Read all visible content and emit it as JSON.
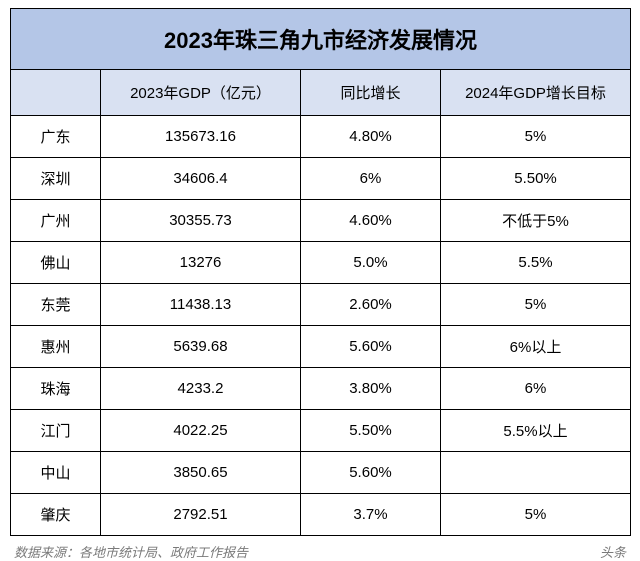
{
  "title": "2023年珠三角九市经济发展情况",
  "columns": {
    "city": "",
    "gdp": "2023年GDP（亿元）",
    "yoy": "同比增长",
    "target": "2024年GDP增长目标"
  },
  "rows": [
    {
      "city": "广东",
      "gdp": "135673.16",
      "yoy": "4.80%",
      "target": "5%"
    },
    {
      "city": "深圳",
      "gdp": "34606.4",
      "yoy": "6%",
      "target": "5.50%"
    },
    {
      "city": "广州",
      "gdp": "30355.73",
      "yoy": "4.60%",
      "target": "不低于5%"
    },
    {
      "city": "佛山",
      "gdp": "13276",
      "yoy": "5.0%",
      "target": "5.5%"
    },
    {
      "city": "东莞",
      "gdp": "11438.13",
      "yoy": "2.60%",
      "target": "5%"
    },
    {
      "city": "惠州",
      "gdp": "5639.68",
      "yoy": "5.60%",
      "target": "6%以上"
    },
    {
      "city": "珠海",
      "gdp": "4233.2",
      "yoy": "3.80%",
      "target": "6%"
    },
    {
      "city": "江门",
      "gdp": "4022.25",
      "yoy": "5.50%",
      "target": "5.5%以上"
    },
    {
      "city": "中山",
      "gdp": "3850.65",
      "yoy": "5.60%",
      "target": ""
    },
    {
      "city": "肇庆",
      "gdp": "2792.51",
      "yoy": "3.7%",
      "target": "5%"
    }
  ],
  "footer_left": "数据来源：各地市统计局、政府工作报告",
  "footer_right": "头条",
  "colors": {
    "title_bg": "#b4c6e7",
    "header_bg": "#d9e1f2",
    "border": "#000000",
    "footer_text": "#7a7a7a"
  }
}
